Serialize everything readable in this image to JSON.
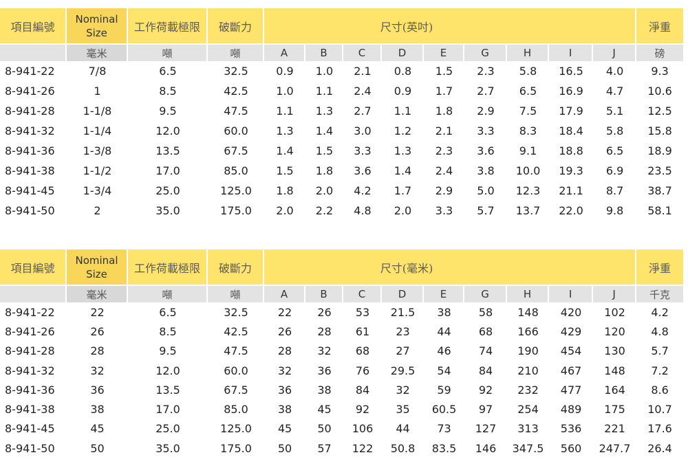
{
  "headers": {
    "item": "項目編號",
    "nominal_line1": "Nominal",
    "nominal_line2": "Size",
    "wll": "工作荷載極限",
    "break": "破斷力",
    "dims_in": "尺寸(英吋)",
    "dims_mm": "尺寸(毫米)",
    "weight": "淨重",
    "dim_letters": [
      "A",
      "B",
      "C",
      "D",
      "E",
      "G",
      "H",
      "I",
      "J"
    ]
  },
  "units_in": {
    "nominal": "毫米",
    "wll": "噸",
    "break": "噸",
    "weight": "磅"
  },
  "units_mm": {
    "nominal": "毫米",
    "wll": "噸",
    "break": "噸",
    "weight": "千克"
  },
  "table_in": [
    [
      "8-941-22",
      "7/8",
      "6.5",
      "32.5",
      "0.9",
      "1.0",
      "2.1",
      "0.8",
      "1.5",
      "2.3",
      "5.8",
      "16.5",
      "4.0",
      "9.3"
    ],
    [
      "8-941-26",
      "1",
      "8.5",
      "42.5",
      "1.0",
      "1.1",
      "2.4",
      "0.9",
      "1.7",
      "2.7",
      "6.5",
      "16.9",
      "4.7",
      "10.6"
    ],
    [
      "8-941-28",
      "1-1/8",
      "9.5",
      "47.5",
      "1.1",
      "1.3",
      "2.7",
      "1.1",
      "1.8",
      "2.9",
      "7.5",
      "17.9",
      "5.1",
      "12.5"
    ],
    [
      "8-941-32",
      "1-1/4",
      "12.0",
      "60.0",
      "1.3",
      "1.4",
      "3.0",
      "1.2",
      "2.1",
      "3.3",
      "8.3",
      "18.4",
      "5.8",
      "15.8"
    ],
    [
      "8-941-36",
      "1-3/8",
      "13.5",
      "67.5",
      "1.4",
      "1.5",
      "3.3",
      "1.3",
      "2.3",
      "3.6",
      "9.1",
      "18.8",
      "6.5",
      "18.9"
    ],
    [
      "8-941-38",
      "1-1/2",
      "17.0",
      "85.0",
      "1.5",
      "1.8",
      "3.6",
      "1.4",
      "2.4",
      "3.8",
      "10.0",
      "19.3",
      "6.9",
      "23.5"
    ],
    [
      "8-941-45",
      "1-3/4",
      "25.0",
      "125.0",
      "1.8",
      "2.0",
      "4.2",
      "1.7",
      "2.9",
      "5.0",
      "12.3",
      "21.1",
      "8.7",
      "38.7"
    ],
    [
      "8-941-50",
      "2",
      "35.0",
      "175.0",
      "2.0",
      "2.2",
      "4.8",
      "2.0",
      "3.3",
      "5.7",
      "13.7",
      "22.0",
      "9.8",
      "58.1"
    ]
  ],
  "table_mm": [
    [
      "8-941-22",
      "22",
      "6.5",
      "32.5",
      "22",
      "26",
      "53",
      "21.5",
      "38",
      "58",
      "148",
      "420",
      "102",
      "4.2"
    ],
    [
      "8-941-26",
      "26",
      "8.5",
      "42.5",
      "26",
      "28",
      "61",
      "23",
      "44",
      "68",
      "166",
      "429",
      "120",
      "4.8"
    ],
    [
      "8-941-28",
      "28",
      "9.5",
      "47.5",
      "28",
      "32",
      "68",
      "27",
      "46",
      "74",
      "190",
      "454",
      "130",
      "5.7"
    ],
    [
      "8-941-32",
      "32",
      "12.0",
      "60.0",
      "32",
      "36",
      "76",
      "29.5",
      "54",
      "84",
      "210",
      "467",
      "148",
      "7.2"
    ],
    [
      "8-941-36",
      "36",
      "13.5",
      "67.5",
      "36",
      "38",
      "84",
      "32",
      "59",
      "92",
      "232",
      "477",
      "164",
      "8.6"
    ],
    [
      "8-941-38",
      "38",
      "17.0",
      "85.0",
      "38",
      "45",
      "92",
      "35",
      "60.5",
      "97",
      "254",
      "489",
      "175",
      "10.7"
    ],
    [
      "8-941-45",
      "45",
      "25.0",
      "125.0",
      "45",
      "50",
      "106",
      "44",
      "73",
      "127",
      "313",
      "536",
      "221",
      "17.6"
    ],
    [
      "8-941-50",
      "50",
      "35.0",
      "175.0",
      "50",
      "57",
      "122",
      "50.8",
      "83.5",
      "146",
      "347.5",
      "560",
      "247.7",
      "26.4"
    ]
  ]
}
